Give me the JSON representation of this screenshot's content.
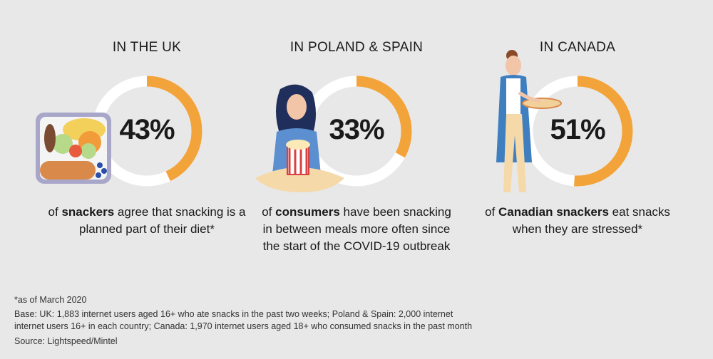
{
  "colors": {
    "accent": "#f2a33a",
    "ring_track": "#ffffff",
    "background": "#e8e8e8"
  },
  "panels": [
    {
      "heading": "IN THE UK",
      "percent": 43,
      "percent_label": "43%",
      "desc_pre": "of ",
      "desc_bold": "snackers",
      "desc_post": " agree that snacking is a planned part of their diet*",
      "illustration": "lunchbox-icon"
    },
    {
      "heading": "IN POLAND & SPAIN",
      "percent": 33,
      "percent_label": "33%",
      "desc_pre": "of ",
      "desc_bold": "consumers",
      "desc_post": " have been snacking in between meals more often since the start of the COVID-19 outbreak",
      "illustration": "woman-popcorn-icon"
    },
    {
      "heading": "IN CANADA",
      "percent": 51,
      "percent_label": "51%",
      "desc_pre": "of ",
      "desc_bold": "Canadian snackers",
      "desc_post": " eat snacks when they are stressed*",
      "illustration": "woman-pizza-icon"
    }
  ],
  "footnotes": {
    "asterisk": "*as of March 2020",
    "base_line1": "Base: UK: 1,883 internet users aged 16+ who ate snacks in the past two weeks; Poland & Spain: 2,000 internet",
    "base_line2": "internet users 16+ in each country; Canada: 1,970 internet users aged 18+ who consumed snacks in the past month",
    "source": "Source: Lightspeed/Mintel"
  }
}
